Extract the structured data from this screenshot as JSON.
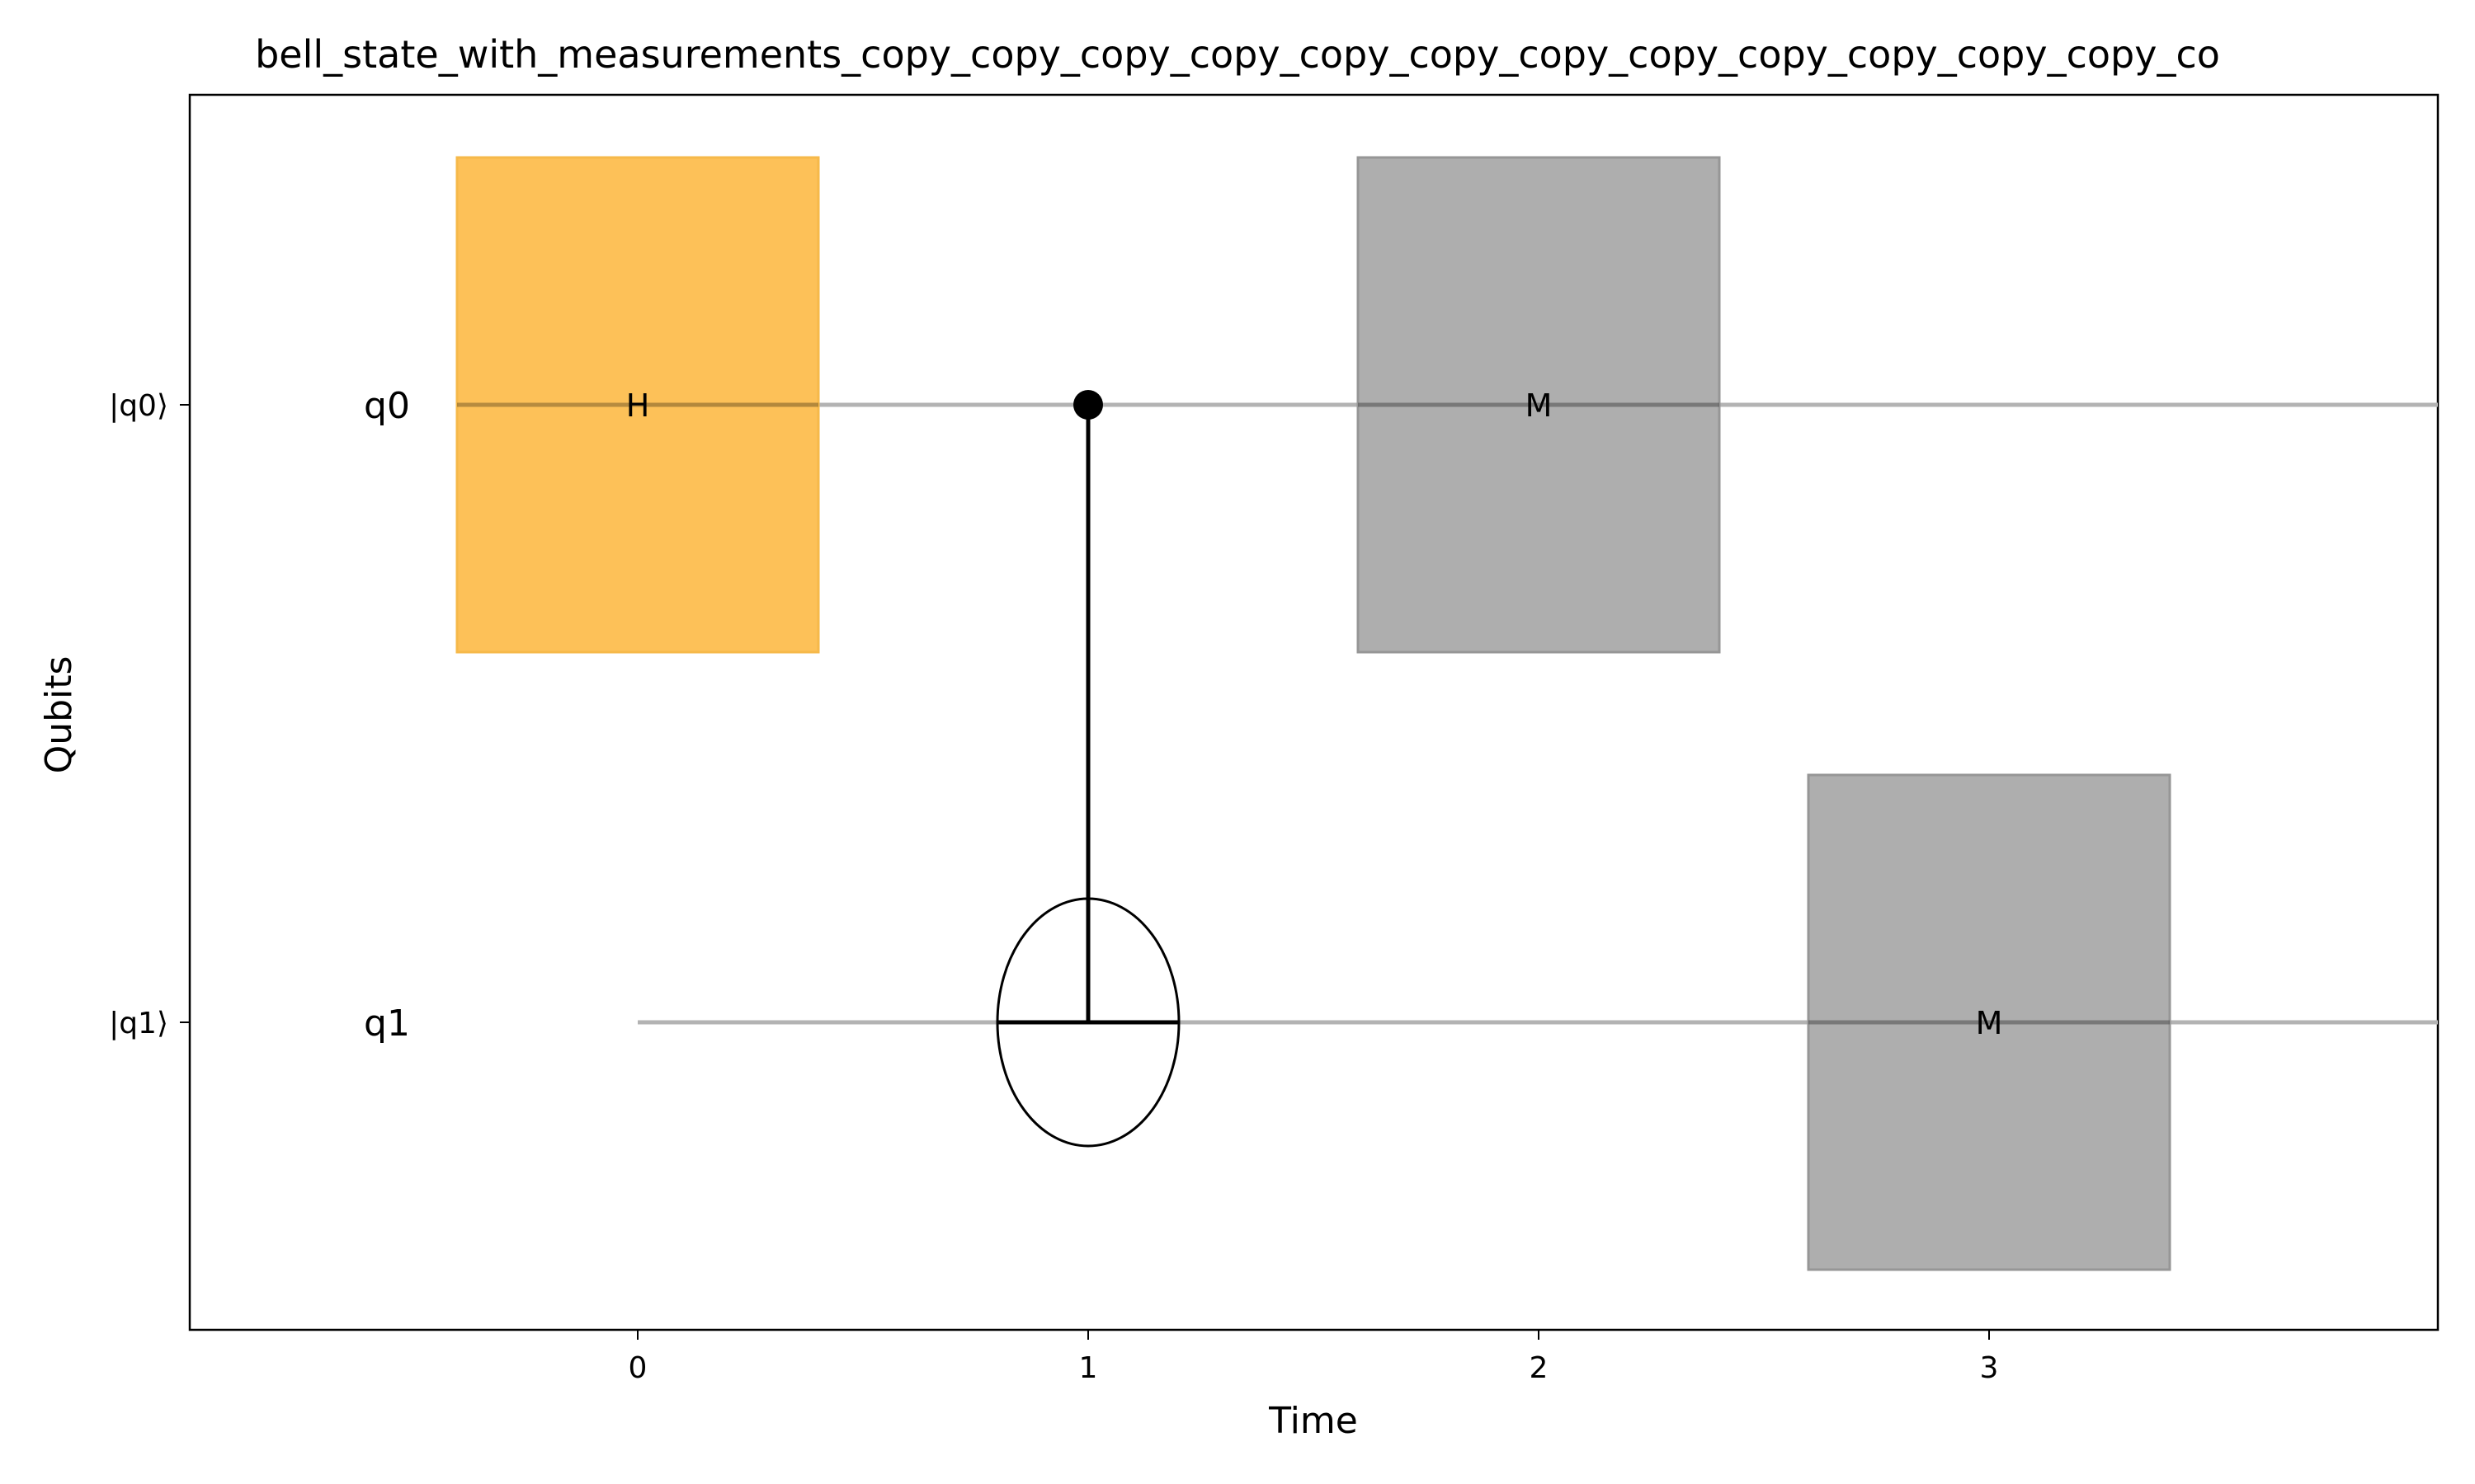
{
  "title": "bell_state_with_measurements_copy_copy_copy_copy_copy_copy_copy_copy_copy_copy_copy_copy_co",
  "xlabel": "Time",
  "ylabel": "Qubits",
  "x_ticks": [
    "0",
    "1",
    "2",
    "3"
  ],
  "qubits": [
    {
      "tick_label": "|q0⟩",
      "name": "q0"
    },
    {
      "tick_label": "|q1⟩",
      "name": "q1"
    }
  ],
  "gates": [
    {
      "label": "H",
      "qubit": 0,
      "time": 0,
      "color": "#fdbe4f"
    },
    {
      "label": "M",
      "qubit": 0,
      "time": 2,
      "color": "#a5a5a5"
    },
    {
      "label": "M",
      "qubit": 1,
      "time": 3,
      "color": "#a5a5a5"
    }
  ],
  "cnot": {
    "control": 0,
    "target": 1,
    "time": 1
  },
  "colors": {
    "wire": "#b3b3b3",
    "axis": "#000000",
    "h_gate": "#fdbe4f",
    "h_gate_edge": "#f6b94a",
    "m_gate": "#a5a5a5",
    "m_gate_edge": "#969696"
  }
}
